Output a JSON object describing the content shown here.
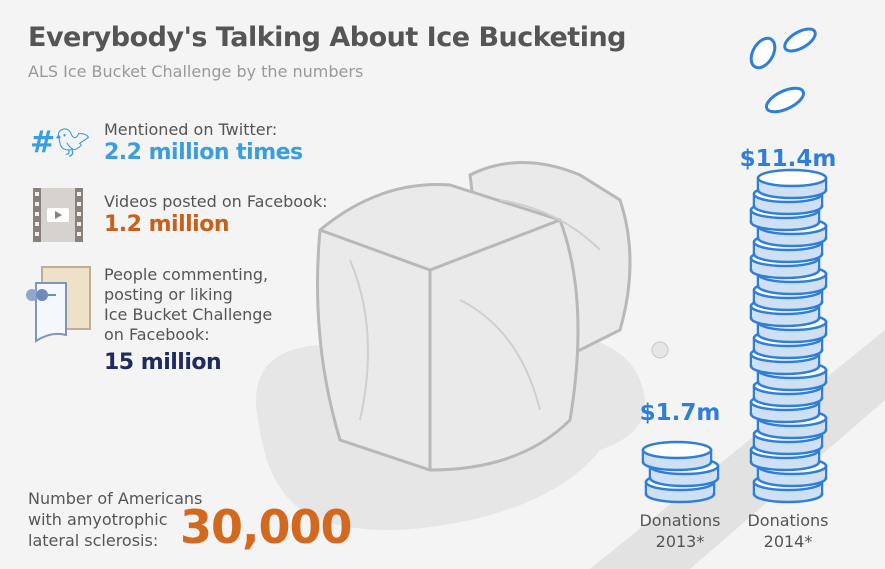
{
  "header": {
    "title": "Everybody's Talking About Ice Bucketing",
    "subtitle": "ALS Ice Bucket Challenge by the numbers"
  },
  "stats": [
    {
      "label": "Mentioned on Twitter:",
      "value": "2.2 million times",
      "color": "#3a9de0",
      "icon": "twitter-hashtag-icon"
    },
    {
      "label": "Videos posted on Facebook:",
      "value": "1.2 million",
      "color": "#c8601a",
      "icon": "film-strip-icon"
    },
    {
      "label_lines": [
        "People commenting,",
        "posting or liking",
        "Ice Bucket Challenge",
        "on Facebook:"
      ],
      "value": "15 million",
      "color": "#1f2b5c",
      "icon": "pinned-note-icon"
    }
  ],
  "als": {
    "label_lines": [
      "Number of Americans",
      "with amyotrophic",
      "lateral sclerosis:"
    ],
    "value": "30,000",
    "color": "#d2691e"
  },
  "chart_data": {
    "type": "bar",
    "categories": [
      "Donations 2013*",
      "Donations 2014*"
    ],
    "values": [
      1.7,
      11.4
    ],
    "unit": "$ million",
    "data_labels": [
      "$1.7m",
      "$11.4m"
    ],
    "label_lines": [
      [
        "Donations",
        "2013*"
      ],
      [
        "Donations",
        "2014*"
      ]
    ],
    "color": "#2f7fd8"
  }
}
